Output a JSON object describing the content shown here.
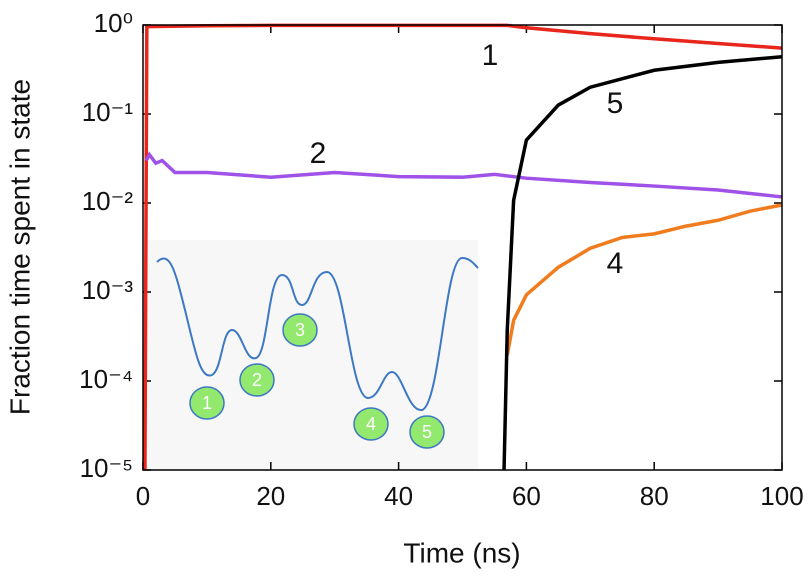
{
  "chart_data": {
    "type": "line",
    "xlabel": "Time (ns)",
    "ylabel": "Fraction time spent in state",
    "xlim": [
      0,
      100
    ],
    "xticks": [
      0,
      20,
      40,
      60,
      80,
      100
    ],
    "ylim": [
      1e-05,
      1
    ],
    "log_y": true,
    "yticks": [
      {
        "value": 1,
        "label": "10⁰"
      },
      {
        "value": 0.1,
        "label": "10⁻¹"
      },
      {
        "value": 0.01,
        "label": "10⁻²"
      },
      {
        "value": 0.001,
        "label": "10⁻³"
      },
      {
        "value": 0.0001,
        "label": "10⁻⁴"
      },
      {
        "value": 1e-05,
        "label": "10⁻⁵"
      }
    ],
    "series": [
      {
        "name": "1",
        "color": "#e8261b",
        "x": [
          0.3,
          0.6,
          10,
          20,
          30,
          40,
          50,
          57,
          60,
          70,
          80,
          90,
          100
        ],
        "values": [
          1e-05,
          0.96,
          0.98,
          0.99,
          0.99,
          0.99,
          0.99,
          0.99,
          0.93,
          0.8,
          0.7,
          0.62,
          0.55
        ]
      },
      {
        "name": "2",
        "color": "#a052e8",
        "x": [
          0.5,
          1,
          2,
          3,
          5,
          10,
          20,
          30,
          40,
          50,
          55,
          60,
          70,
          80,
          90,
          100
        ],
        "values": [
          0.03,
          0.035,
          0.028,
          0.03,
          0.022,
          0.022,
          0.0195,
          0.022,
          0.0198,
          0.0195,
          0.021,
          0.019,
          0.017,
          0.0155,
          0.014,
          0.0117
        ]
      },
      {
        "name": "4",
        "color": "#f07c1e",
        "x": [
          57,
          58,
          60,
          65,
          70,
          75,
          80,
          85,
          90,
          95,
          100
        ],
        "values": [
          0.000195,
          0.00048,
          0.00093,
          0.0019,
          0.0031,
          0.0041,
          0.0045,
          0.0055,
          0.0064,
          0.0081,
          0.0095
        ]
      },
      {
        "name": "5",
        "color": "#000000",
        "x": [
          56.5,
          57,
          58,
          60,
          65,
          70,
          80,
          90,
          100
        ],
        "values": [
          1e-05,
          0.00037,
          0.0107,
          0.051,
          0.126,
          0.2,
          0.31,
          0.38,
          0.44
        ]
      }
    ]
  },
  "inset": {
    "labels": [
      "1",
      "2",
      "3",
      "4",
      "5"
    ]
  }
}
